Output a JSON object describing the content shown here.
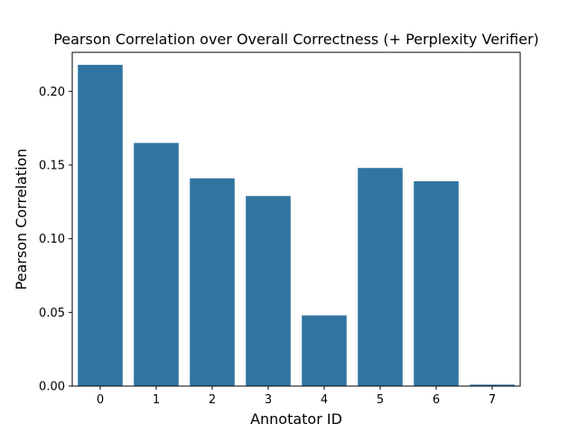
{
  "chart_data": {
    "type": "bar",
    "title": "Pearson Correlation over Overall Correctness (+ Perplexity Verifier)",
    "xlabel": "Annotator ID",
    "ylabel": "Pearson Correlation",
    "categories": [
      "0",
      "1",
      "2",
      "3",
      "4",
      "5",
      "6",
      "7"
    ],
    "values": [
      0.218,
      0.165,
      0.141,
      0.129,
      0.048,
      0.148,
      0.139,
      0.001
    ],
    "ylim": [
      0,
      0.2265
    ],
    "yticks": [
      0.0,
      0.05,
      0.1,
      0.15,
      0.2
    ],
    "ytick_labels": [
      "0.00",
      "0.05",
      "0.10",
      "0.15",
      "0.20"
    ],
    "bar_color": "#3274a1",
    "grid": false,
    "legend": "none"
  }
}
